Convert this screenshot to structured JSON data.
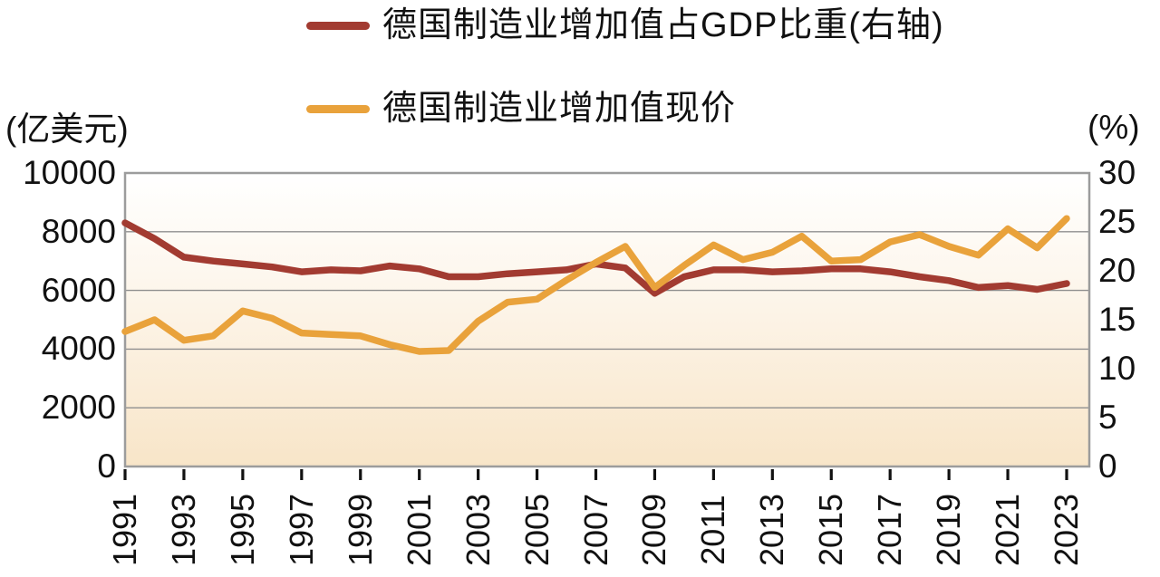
{
  "legend": [
    {
      "label": "德国制造业增加值占GDP比重(右轴)",
      "color": "#A23B31"
    },
    {
      "label": "德国制造业增加值现价",
      "color": "#E9A23B"
    }
  ],
  "chart_data": {
    "type": "line",
    "title": "",
    "xlabel": "",
    "ylabel_left": "(亿美元)",
    "ylabel_right": "(%)",
    "x": [
      1991,
      1992,
      1993,
      1994,
      1995,
      1996,
      1997,
      1998,
      1999,
      2000,
      2001,
      2002,
      2003,
      2004,
      2005,
      2006,
      2007,
      2008,
      2009,
      2010,
      2011,
      2012,
      2013,
      2014,
      2015,
      2016,
      2017,
      2018,
      2019,
      2020,
      2021,
      2022,
      2023
    ],
    "x_tick_labels": [
      "1991",
      "1993",
      "1995",
      "1997",
      "1999",
      "2001",
      "2003",
      "2005",
      "2007",
      "2009",
      "2011",
      "2013",
      "2015",
      "2017",
      "2019",
      "2021",
      "2023"
    ],
    "series": [
      {
        "name": "德国制造业增加值占GDP比重(右轴)",
        "axis": "right",
        "color": "#A23B31",
        "unit": "%",
        "values": [
          24.9,
          23.3,
          21.4,
          21.0,
          20.7,
          20.4,
          19.9,
          20.1,
          20.0,
          20.5,
          20.2,
          19.4,
          19.4,
          19.7,
          19.9,
          20.1,
          20.7,
          20.3,
          17.7,
          19.4,
          20.1,
          20.1,
          19.9,
          20.0,
          20.2,
          20.2,
          19.9,
          19.4,
          19.0,
          18.3,
          18.5,
          18.1,
          18.7
        ]
      },
      {
        "name": "德国制造业增加值现价",
        "axis": "left",
        "color": "#E9A23B",
        "unit": "亿美元",
        "values": [
          4600,
          5000,
          4300,
          4450,
          5300,
          5050,
          4550,
          4500,
          4450,
          4150,
          3920,
          3950,
          4950,
          5600,
          5700,
          6350,
          6950,
          7500,
          6100,
          6850,
          7550,
          7050,
          7300,
          7850,
          7000,
          7050,
          7650,
          7900,
          7500,
          7200,
          8100,
          7450,
          8450
        ]
      }
    ],
    "y_left": {
      "label": "(亿美元)",
      "min": 0,
      "max": 10000,
      "ticks": [
        0,
        2000,
        4000,
        6000,
        8000,
        10000
      ]
    },
    "y_right": {
      "label": "(%)",
      "min": 0,
      "max": 30,
      "ticks": [
        0,
        5,
        10,
        15,
        20,
        25,
        30
      ]
    },
    "grid": "horizontal",
    "legend_position": "top",
    "plot_background_gradient": [
      "#FFFFFF",
      "#F8E5C8"
    ],
    "border_color": "#9C9C9C",
    "gridline_color": "#8F8F8F"
  }
}
